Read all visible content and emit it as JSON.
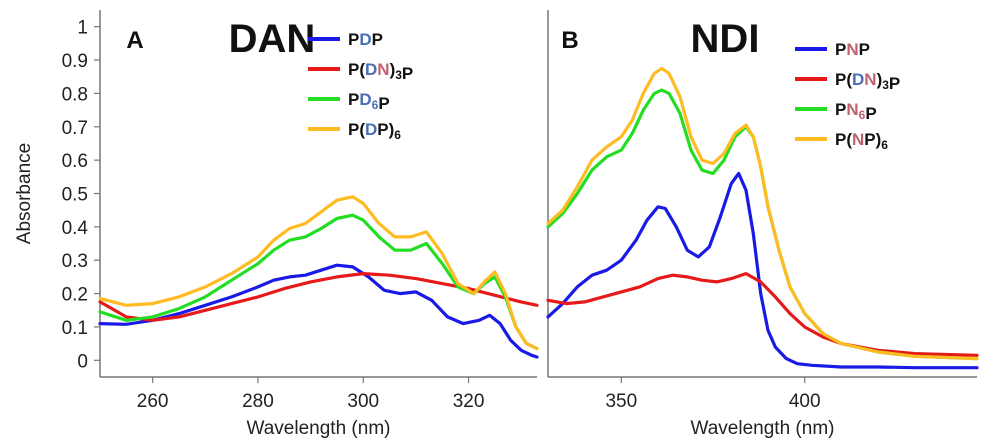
{
  "chart_data": [
    {
      "type": "line",
      "panel_label": "A",
      "title": "DAN",
      "xlabel": "Wavelength (nm)",
      "ylabel": "Absorbance",
      "xlim": [
        250,
        333
      ],
      "ylim": [
        -0.05,
        1.05
      ],
      "xticks": [
        260,
        280,
        300,
        320
      ],
      "yticks": [
        0,
        0.1,
        0.2,
        0.3,
        0.4,
        0.5,
        0.6,
        0.7,
        0.8,
        0.9,
        1
      ],
      "ytick_labels": [
        "0",
        "0.1",
        "0.2",
        "0.3",
        "0.4",
        "0.5",
        "0.6",
        "0.7",
        "0.8",
        "0.9",
        "1"
      ],
      "legend_position": "top-right",
      "series": [
        {
          "legend": [
            {
              "t": "P",
              "c": "#111111"
            },
            {
              "t": "D",
              "c": "#4a6fb3"
            },
            {
              "t": "P",
              "c": "#111111"
            }
          ],
          "color": "#1a1ae6",
          "x": [
            250,
            255,
            260,
            265,
            270,
            275,
            280,
            283,
            286,
            289,
            292,
            295,
            298,
            301,
            304,
            307,
            310,
            313,
            316,
            319,
            322,
            324,
            326,
            328,
            330,
            332,
            333
          ],
          "y": [
            0.11,
            0.108,
            0.12,
            0.14,
            0.165,
            0.19,
            0.22,
            0.24,
            0.25,
            0.255,
            0.27,
            0.285,
            0.28,
            0.25,
            0.21,
            0.2,
            0.205,
            0.18,
            0.13,
            0.11,
            0.12,
            0.135,
            0.11,
            0.06,
            0.03,
            0.015,
            0.01
          ]
        },
        {
          "legend": [
            {
              "t": "P(",
              "c": "#111111"
            },
            {
              "t": "D",
              "c": "#4a6fb3"
            },
            {
              "t": "N",
              "c": "#c0616e"
            },
            {
              "t": ")",
              "c": "#111111"
            },
            {
              "t": "3",
              "c": "#111111",
              "sub": true
            },
            {
              "t": "P",
              "c": "#111111"
            }
          ],
          "color": "#e61a1a",
          "x": [
            250,
            255,
            260,
            265,
            270,
            275,
            280,
            285,
            290,
            295,
            300,
            305,
            310,
            315,
            320,
            325,
            330,
            333
          ],
          "y": [
            0.175,
            0.13,
            0.12,
            0.13,
            0.15,
            0.17,
            0.19,
            0.215,
            0.235,
            0.25,
            0.26,
            0.255,
            0.245,
            0.23,
            0.215,
            0.195,
            0.175,
            0.165
          ]
        },
        {
          "legend": [
            {
              "t": "P",
              "c": "#111111"
            },
            {
              "t": "D",
              "c": "#4a6fb3"
            },
            {
              "t": "6",
              "c": "#4a6fb3",
              "sub": true
            },
            {
              "t": "P",
              "c": "#111111"
            }
          ],
          "color": "#22dd22",
          "x": [
            250,
            255,
            260,
            265,
            270,
            275,
            280,
            283,
            286,
            289,
            292,
            295,
            298,
            300,
            303,
            306,
            309,
            312,
            315,
            318,
            321,
            323,
            325,
            327,
            329,
            331,
            333
          ],
          "y": [
            0.145,
            0.12,
            0.13,
            0.155,
            0.19,
            0.24,
            0.29,
            0.33,
            0.36,
            0.37,
            0.395,
            0.425,
            0.435,
            0.42,
            0.37,
            0.33,
            0.33,
            0.35,
            0.29,
            0.22,
            0.2,
            0.23,
            0.25,
            0.19,
            0.1,
            0.05,
            0.035
          ]
        },
        {
          "legend": [
            {
              "t": "P(",
              "c": "#111111"
            },
            {
              "t": "D",
              "c": "#4a6fb3"
            },
            {
              "t": "P)",
              "c": "#111111"
            },
            {
              "t": "6",
              "c": "#111111",
              "sub": true
            }
          ],
          "color": "#ffbb22",
          "x": [
            250,
            255,
            260,
            265,
            270,
            275,
            280,
            283,
            286,
            289,
            292,
            295,
            298,
            300,
            303,
            306,
            309,
            312,
            315,
            318,
            321,
            323,
            325,
            327,
            329,
            331,
            333
          ],
          "y": [
            0.185,
            0.165,
            0.17,
            0.19,
            0.22,
            0.26,
            0.31,
            0.36,
            0.395,
            0.41,
            0.445,
            0.48,
            0.49,
            0.47,
            0.41,
            0.37,
            0.37,
            0.385,
            0.32,
            0.23,
            0.2,
            0.235,
            0.265,
            0.2,
            0.1,
            0.05,
            0.035
          ]
        }
      ]
    },
    {
      "type": "line",
      "panel_label": "B",
      "title": "NDI",
      "xlabel": "Wavelength (nm)",
      "ylabel": "",
      "xlim": [
        330,
        447
      ],
      "ylim": [
        -0.05,
        1.05
      ],
      "xticks": [
        350,
        400
      ],
      "legend_position": "top-right",
      "series": [
        {
          "legend": [
            {
              "t": "P",
              "c": "#111111"
            },
            {
              "t": "N",
              "c": "#c0616e"
            },
            {
              "t": "P",
              "c": "#111111"
            }
          ],
          "color": "#1a1ae6",
          "x": [
            330,
            334,
            338,
            342,
            346,
            350,
            354,
            357,
            360,
            362,
            365,
            368,
            371,
            374,
            377,
            380,
            382,
            384,
            386,
            388,
            390,
            392,
            395,
            398,
            402,
            410,
            420,
            430,
            447
          ],
          "y": [
            0.13,
            0.17,
            0.22,
            0.255,
            0.27,
            0.3,
            0.36,
            0.42,
            0.46,
            0.455,
            0.4,
            0.33,
            0.31,
            0.34,
            0.43,
            0.53,
            0.56,
            0.51,
            0.38,
            0.2,
            0.09,
            0.04,
            0.005,
            -0.01,
            -0.015,
            -0.02,
            -0.02,
            -0.022,
            -0.022
          ]
        },
        {
          "legend": [
            {
              "t": "P(",
              "c": "#111111"
            },
            {
              "t": "D",
              "c": "#4a6fb3"
            },
            {
              "t": "N",
              "c": "#c0616e"
            },
            {
              "t": ")",
              "c": "#111111"
            },
            {
              "t": "3",
              "c": "#111111",
              "sub": true
            },
            {
              "t": "P",
              "c": "#111111"
            }
          ],
          "color": "#e61a1a",
          "x": [
            330,
            335,
            340,
            345,
            350,
            355,
            360,
            364,
            368,
            372,
            376,
            380,
            384,
            388,
            392,
            396,
            400,
            405,
            410,
            420,
            430,
            447
          ],
          "y": [
            0.18,
            0.17,
            0.175,
            0.19,
            0.205,
            0.22,
            0.245,
            0.255,
            0.25,
            0.24,
            0.235,
            0.245,
            0.26,
            0.235,
            0.19,
            0.14,
            0.1,
            0.07,
            0.05,
            0.03,
            0.02,
            0.015
          ]
        },
        {
          "legend": [
            {
              "t": "P",
              "c": "#111111"
            },
            {
              "t": "N",
              "c": "#c0616e"
            },
            {
              "t": "6",
              "c": "#c0616e",
              "sub": true
            },
            {
              "t": "P",
              "c": "#111111"
            }
          ],
          "color": "#22dd22",
          "x": [
            330,
            334,
            338,
            342,
            346,
            350,
            353,
            356,
            359,
            361,
            363,
            366,
            369,
            372,
            375,
            378,
            381,
            384,
            386,
            388,
            390,
            393,
            396,
            400,
            405,
            410,
            420,
            430,
            447
          ],
          "y": [
            0.4,
            0.44,
            0.5,
            0.57,
            0.61,
            0.63,
            0.68,
            0.75,
            0.8,
            0.81,
            0.8,
            0.74,
            0.63,
            0.57,
            0.56,
            0.6,
            0.67,
            0.7,
            0.67,
            0.58,
            0.46,
            0.33,
            0.22,
            0.14,
            0.08,
            0.05,
            0.025,
            0.012,
            0.005
          ]
        },
        {
          "legend": [
            {
              "t": "P(",
              "c": "#111111"
            },
            {
              "t": "N",
              "c": "#c0616e"
            },
            {
              "t": "P)",
              "c": "#111111"
            },
            {
              "t": "6",
              "c": "#111111",
              "sub": true
            }
          ],
          "color": "#ffbb22",
          "x": [
            330,
            334,
            338,
            342,
            346,
            350,
            353,
            356,
            359,
            361,
            363,
            366,
            369,
            372,
            375,
            378,
            381,
            384,
            386,
            388,
            390,
            393,
            396,
            400,
            405,
            410,
            420,
            430,
            447
          ],
          "y": [
            0.41,
            0.45,
            0.52,
            0.6,
            0.64,
            0.67,
            0.72,
            0.8,
            0.86,
            0.875,
            0.86,
            0.79,
            0.67,
            0.6,
            0.59,
            0.62,
            0.68,
            0.705,
            0.67,
            0.58,
            0.46,
            0.33,
            0.22,
            0.14,
            0.08,
            0.05,
            0.025,
            0.012,
            0.005
          ]
        }
      ]
    }
  ]
}
